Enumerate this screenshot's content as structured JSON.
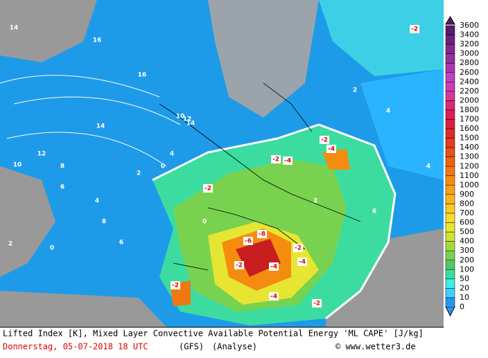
{
  "map": {
    "legend": {
      "labels": [
        3600,
        3400,
        3200,
        3000,
        2800,
        2600,
        2400,
        2200,
        2000,
        1800,
        1700,
        1600,
        1500,
        1400,
        1300,
        1200,
        1100,
        1000,
        900,
        800,
        700,
        600,
        500,
        400,
        300,
        200,
        100,
        50,
        20,
        10,
        0
      ],
      "colors": [
        "#5a1a6e",
        "#6e2080",
        "#822890",
        "#9630a0",
        "#aa38b0",
        "#be40c0",
        "#cc3cb4",
        "#d83898",
        "#dc2878",
        "#dc1e5a",
        "#dc1e3c",
        "#e02828",
        "#e43c1e",
        "#e85014",
        "#ec6410",
        "#f07810",
        "#f48c10",
        "#f8a014",
        "#fcb41e",
        "#fcc828",
        "#f8dc2c",
        "#e6e632",
        "#c8e632",
        "#a0dc3c",
        "#78d250",
        "#50c864",
        "#3cdca0",
        "#3cf0e6",
        "#3cd2ff",
        "#2896f0"
      ]
    },
    "labels": [
      "14",
      "16",
      "16",
      "14",
      "12",
      "10",
      "8",
      "6",
      "4",
      "2",
      "0",
      "-2",
      "-4",
      "-6",
      "-8",
      "-2",
      "-4",
      "-2",
      "-4",
      "-2",
      "2",
      "4",
      "6",
      "8",
      "10",
      "12",
      "14",
      "-2",
      "-2",
      "-4",
      "0",
      "2",
      "4",
      "6",
      "-2",
      "-4",
      "-2",
      "0",
      "2",
      "4"
    ],
    "footer": {
      "title": "Lifted Index [K], Mixed Layer Convective Available Potential Energy 'ML CAPE' [J/kg]",
      "date": "Donnerstag, 05-07-2018  18 UTC",
      "model": "(GFS)",
      "run": "(Analyse)",
      "credit": "© www.wetter3.de"
    }
  }
}
